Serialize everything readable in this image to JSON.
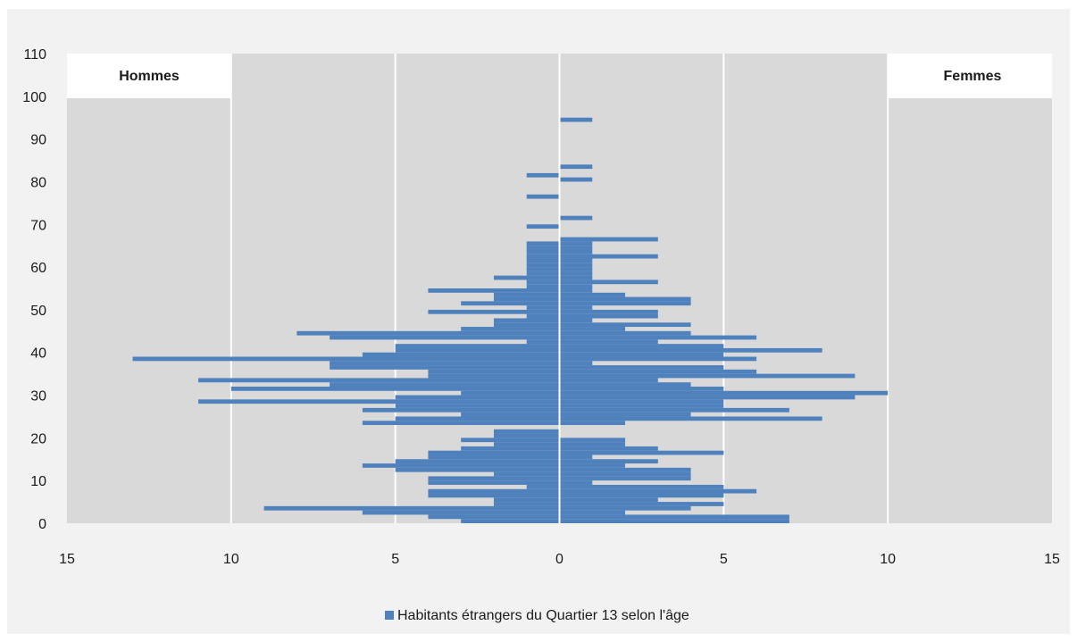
{
  "chart_data": {
    "type": "bar",
    "orientation": "horizontal",
    "subtype": "population-pyramid",
    "title": "",
    "legend": {
      "label": "Habitants étrangers du Quartier 13 selon l'âge",
      "placement": "bottom",
      "color": "#4f81bd"
    },
    "left_label": "Hommes",
    "right_label": "Femmes",
    "xlim": [
      -15,
      15
    ],
    "x_ticks": [
      -15,
      -10,
      -5,
      0,
      5,
      10,
      15
    ],
    "x_tick_labels": [
      "15",
      "10",
      "5",
      "0",
      "5",
      "10",
      "15"
    ],
    "ylim": [
      0,
      110
    ],
    "y_ticks": [
      0,
      10,
      20,
      30,
      40,
      50,
      60,
      70,
      80,
      90,
      100,
      110
    ],
    "grid": true,
    "series": [
      {
        "name": "Hommes",
        "side": "left",
        "ages": [
          0,
          1,
          2,
          3,
          4,
          5,
          6,
          7,
          8,
          9,
          10,
          11,
          12,
          13,
          14,
          15,
          16,
          17,
          18,
          19,
          20,
          21,
          22,
          23,
          24,
          25,
          26,
          27,
          28,
          29,
          30,
          31,
          32,
          33,
          34,
          35,
          36,
          37,
          38,
          39,
          40,
          41,
          42,
          43,
          44,
          45,
          46,
          47,
          48,
          49,
          50,
          51,
          52,
          53,
          54,
          55,
          56,
          57,
          58,
          59,
          60,
          61,
          62,
          63,
          64,
          65,
          69,
          76,
          81
        ],
        "values": [
          3,
          4,
          6,
          9,
          2,
          2,
          4,
          4,
          1,
          4,
          4,
          2,
          5,
          6,
          5,
          4,
          4,
          3,
          2,
          3,
          2,
          2,
          0,
          6,
          5,
          3,
          6,
          5,
          11,
          5,
          3,
          10,
          7,
          11,
          4,
          4,
          7,
          7,
          13,
          6,
          5,
          5,
          1,
          7,
          8,
          3,
          2,
          2,
          1,
          4,
          1,
          3,
          2,
          2,
          4,
          1,
          1,
          2,
          1,
          1,
          1,
          1,
          1,
          1,
          1,
          1,
          1,
          1,
          1
        ]
      },
      {
        "name": "Femmes",
        "side": "right",
        "ages": [
          0,
          1,
          2,
          3,
          4,
          5,
          6,
          7,
          8,
          9,
          10,
          11,
          12,
          13,
          14,
          15,
          16,
          17,
          18,
          19,
          20,
          21,
          22,
          23,
          24,
          25,
          26,
          27,
          28,
          29,
          30,
          31,
          32,
          33,
          34,
          35,
          36,
          37,
          38,
          39,
          40,
          41,
          42,
          43,
          44,
          45,
          46,
          47,
          48,
          49,
          50,
          51,
          52,
          53,
          54,
          55,
          56,
          57,
          58,
          59,
          60,
          61,
          62,
          63,
          64,
          65,
          66,
          71,
          80,
          83,
          94
        ],
        "values": [
          7,
          7,
          2,
          4,
          5,
          3,
          5,
          6,
          5,
          1,
          4,
          4,
          4,
          2,
          3,
          1,
          5,
          3,
          2,
          2,
          0,
          0,
          0,
          2,
          8,
          4,
          7,
          5,
          5,
          9,
          10,
          5,
          4,
          3,
          9,
          6,
          5,
          1,
          6,
          5,
          8,
          5,
          3,
          6,
          4,
          2,
          4,
          1,
          3,
          3,
          1,
          4,
          4,
          2,
          1,
          1,
          3,
          1,
          1,
          1,
          1,
          1,
          3,
          1,
          1,
          1,
          3,
          1,
          1,
          1,
          1
        ]
      }
    ]
  }
}
